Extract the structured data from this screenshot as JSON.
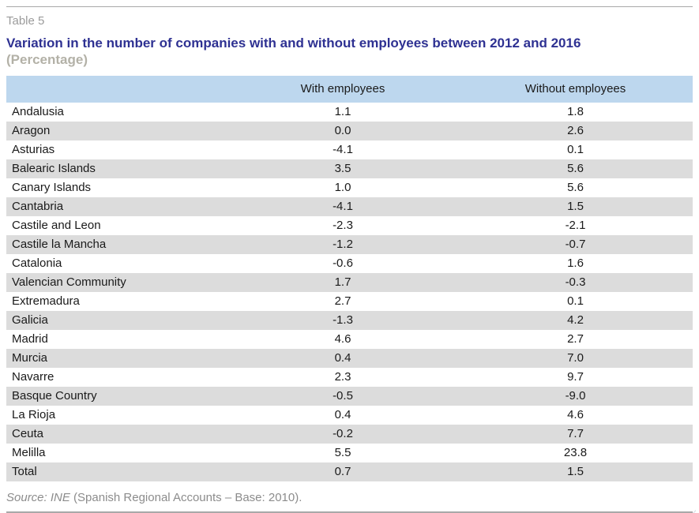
{
  "page": {
    "table_label": "Table 5",
    "title": "Variation in the number of companies with and without employees between 2012 and 2016",
    "subtitle": "(Percentage)",
    "source_italic": "Source: INE",
    "source_rest": " (Spanish Regional Accounts – Base: 2010)."
  },
  "colors": {
    "title_text": "#2e3192",
    "subtitle_text": "#b3b1a7",
    "table_label_text": "#9b9b9b",
    "header_row_bg": "#bdd7ee",
    "stripe_row_bg": "#dcdcdc",
    "body_text": "#1a1a1a",
    "source_text": "#8c8c8c",
    "divider_gray": "#a9a9a9"
  },
  "table": {
    "columns": [
      "",
      "With employees",
      "Without employees"
    ],
    "rows": [
      {
        "region": "Andalusia",
        "with": "1.1",
        "without": "1.8"
      },
      {
        "region": "Aragon",
        "with": "0.0",
        "without": "2.6"
      },
      {
        "region": "Asturias",
        "with": "-4.1",
        "without": "0.1"
      },
      {
        "region": "Balearic Islands",
        "with": "3.5",
        "without": "5.6"
      },
      {
        "region": "Canary Islands",
        "with": "1.0",
        "without": "5.6"
      },
      {
        "region": "Cantabria",
        "with": "-4.1",
        "without": "1.5"
      },
      {
        "region": "Castile and Leon",
        "with": "-2.3",
        "without": "-2.1"
      },
      {
        "region": "Castile la Mancha",
        "with": "-1.2",
        "without": "-0.7"
      },
      {
        "region": "Catalonia",
        "with": "-0.6",
        "without": "1.6"
      },
      {
        "region": "Valencian Community",
        "with": "1.7",
        "without": "-0.3"
      },
      {
        "region": "Extremadura",
        "with": "2.7",
        "without": "0.1"
      },
      {
        "region": "Galicia",
        "with": "-1.3",
        "without": "4.2"
      },
      {
        "region": "Madrid",
        "with": "4.6",
        "without": "2.7"
      },
      {
        "region": "Murcia",
        "with": "0.4",
        "without": "7.0"
      },
      {
        "region": "Navarre",
        "with": "2.3",
        "without": "9.7"
      },
      {
        "region": "Basque Country",
        "with": "-0.5",
        "without": "-9.0"
      },
      {
        "region": "La Rioja",
        "with": "0.4",
        "without": "4.6"
      },
      {
        "region": "Ceuta",
        "with": "-0.2",
        "without": "7.7"
      },
      {
        "region": "Melilla",
        "with": "5.5",
        "without": "23.8"
      },
      {
        "region": "Total",
        "with": "0.7",
        "without": "1.5"
      }
    ]
  },
  "chart_data": {
    "type": "table",
    "title": "Variation in the number of companies with and without employees between 2012 and 2016 (Percentage)",
    "categories": [
      "Andalusia",
      "Aragon",
      "Asturias",
      "Balearic Islands",
      "Canary Islands",
      "Cantabria",
      "Castile and Leon",
      "Castile la Mancha",
      "Catalonia",
      "Valencian Community",
      "Extremadura",
      "Galicia",
      "Madrid",
      "Murcia",
      "Navarre",
      "Basque Country",
      "La Rioja",
      "Ceuta",
      "Melilla",
      "Total"
    ],
    "series": [
      {
        "name": "With employees",
        "values": [
          1.1,
          0.0,
          -4.1,
          3.5,
          1.0,
          -4.1,
          -2.3,
          -1.2,
          -0.6,
          1.7,
          2.7,
          -1.3,
          4.6,
          0.4,
          2.3,
          -0.5,
          0.4,
          -0.2,
          5.5,
          0.7
        ]
      },
      {
        "name": "Without employees",
        "values": [
          1.8,
          2.6,
          0.1,
          5.6,
          5.6,
          1.5,
          -2.1,
          -0.7,
          1.6,
          -0.3,
          0.1,
          4.2,
          2.7,
          7.0,
          9.7,
          -9.0,
          4.6,
          7.7,
          23.8,
          1.5
        ]
      }
    ],
    "source": "Source: INE (Spanish Regional Accounts – Base: 2010)."
  }
}
